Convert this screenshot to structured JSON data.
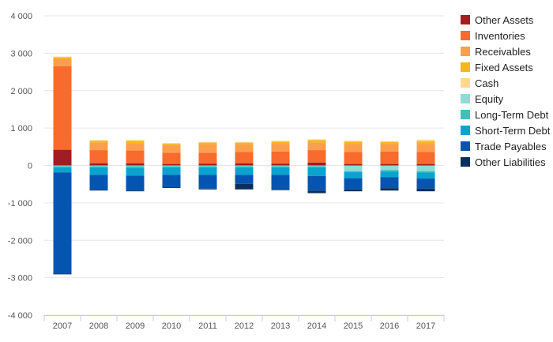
{
  "chart_data": {
    "type": "bar",
    "stacked": true,
    "categories": [
      "2007",
      "2008",
      "2009",
      "2010",
      "2011",
      "2012",
      "2013",
      "2014",
      "2015",
      "2016",
      "2017"
    ],
    "ylim": [
      -4000,
      4000
    ],
    "yticks": [
      4000,
      3000,
      2000,
      1000,
      0,
      -1000,
      -2000,
      -3000,
      -4000
    ],
    "ytick_labels": [
      "4 000",
      "3 000",
      "2 000",
      "1 000",
      "0",
      "-1 000",
      "-2 000",
      "-3 000",
      "-4 000"
    ],
    "grid": true,
    "legend_position": "right",
    "series": [
      {
        "name": "Other Assets",
        "color": "#a31c23",
        "values": [
          420,
          60,
          60,
          40,
          50,
          60,
          50,
          80,
          40,
          40,
          40
        ]
      },
      {
        "name": "Inventories",
        "color": "#f96b2d",
        "values": [
          2230,
          350,
          340,
          300,
          290,
          300,
          320,
          330,
          320,
          330,
          320
        ]
      },
      {
        "name": "Receivables",
        "color": "#fb9f4e",
        "values": [
          200,
          200,
          190,
          200,
          220,
          200,
          210,
          200,
          210,
          200,
          210
        ]
      },
      {
        "name": "Fixed Assets",
        "color": "#f8b521",
        "values": [
          40,
          50,
          70,
          40,
          50,
          50,
          60,
          70,
          70,
          60,
          80
        ]
      },
      {
        "name": "Cash",
        "color": "#fdd98a",
        "values": [
          20,
          20,
          20,
          20,
          20,
          20,
          20,
          20,
          20,
          20,
          40
        ]
      },
      {
        "name": "Equity",
        "color": "#8fdbd5",
        "values": [
          -20,
          -20,
          -20,
          -20,
          -20,
          -20,
          -20,
          -20,
          -150,
          -120,
          -150
        ]
      },
      {
        "name": "Long-Term Debt",
        "color": "#3ec2b8",
        "values": [
          -30,
          -30,
          -40,
          -30,
          -30,
          -30,
          -30,
          -30,
          -30,
          -40,
          -40
        ]
      },
      {
        "name": "Short-Term Debt",
        "color": "#0aa3cf",
        "values": [
          -140,
          -200,
          -210,
          -200,
          -200,
          -200,
          -200,
          -230,
          -160,
          -150,
          -160
        ]
      },
      {
        "name": "Trade Payables",
        "color": "#0455b1",
        "values": [
          -2700,
          -400,
          -400,
          -330,
          -370,
          -240,
          -390,
          -390,
          -300,
          -300,
          -270
        ]
      },
      {
        "name": "Other Liabilities",
        "color": "#0a2f5a",
        "values": [
          -20,
          -20,
          -20,
          -20,
          -20,
          -150,
          -20,
          -70,
          -50,
          -60,
          -70
        ]
      }
    ],
    "legend_order": [
      "Other Assets",
      "Inventories",
      "Receivables",
      "Fixed Assets",
      "Cash",
      "Equity",
      "Long-Term Debt",
      "Short-Term Debt",
      "Trade Payables",
      "Other Liabilities"
    ]
  }
}
